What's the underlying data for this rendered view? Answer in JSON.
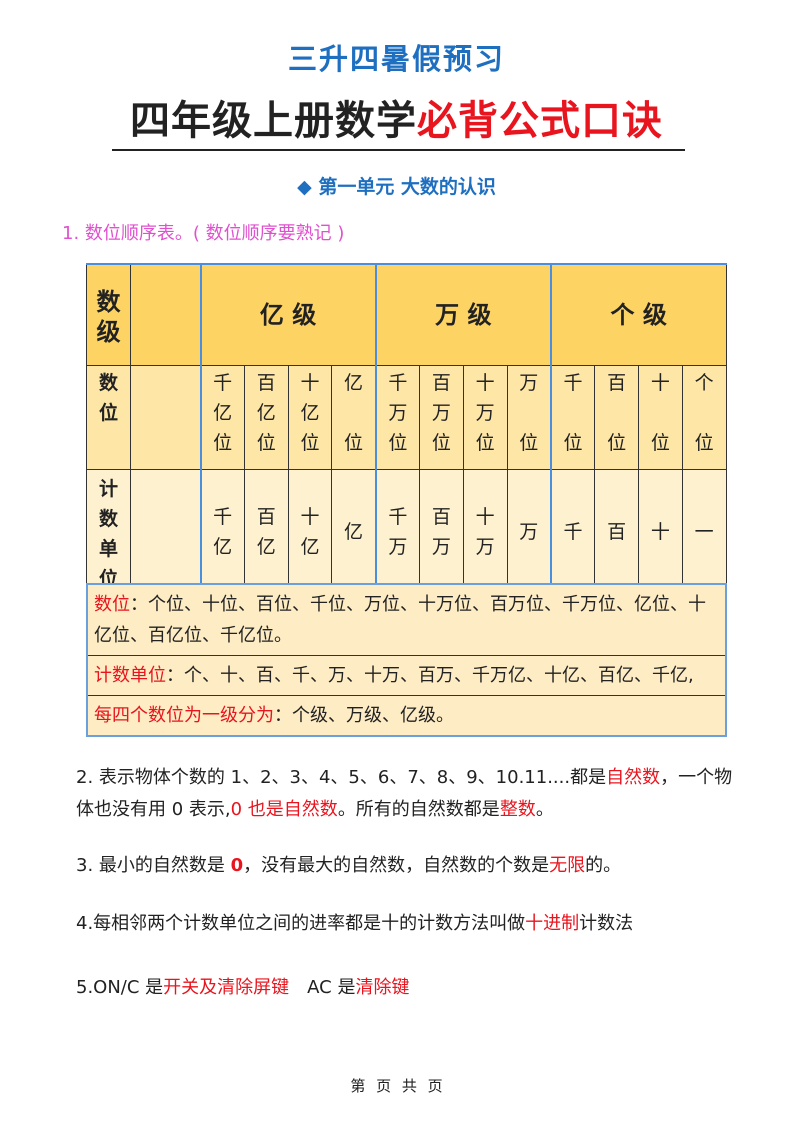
{
  "header": {
    "subtitle": "三升四暑假预习",
    "title_black": "四年级上册数学",
    "title_red": "必背公式口诀"
  },
  "section": {
    "marker": "◆",
    "title": "第一单元 大数的认识"
  },
  "item1": "1. 数位顺序表。( 数位顺序要熟记 )",
  "table": {
    "row_labels": [
      "数级",
      "数位",
      "计数单位"
    ],
    "levels": [
      "亿 级",
      "万 级",
      "个 级"
    ],
    "places": [
      "千亿位",
      "百亿位",
      "十亿位",
      "亿位",
      "千万位",
      "百万位",
      "十万位",
      "万位",
      "千位",
      "百位",
      "十位",
      "个位"
    ],
    "units": [
      "千亿",
      "百亿",
      "十亿",
      "亿",
      "千万",
      "百万",
      "十万",
      "万",
      "千",
      "百",
      "十",
      "一"
    ]
  },
  "notes": [
    {
      "key": "数位",
      "text": "：个位、十位、百位、千位、万位、十万位、百万位、千万位、亿位、十亿位、百亿位、千亿位。"
    },
    {
      "key": "计数单位",
      "text": "：个、十、百、千、万、十万、百万、千万亿、十亿、百亿、千亿,"
    },
    {
      "key": "每四个数位为一级分为",
      "text": "：个级、万级、亿级。"
    }
  ],
  "paragraphs": {
    "p2": [
      "2. 表示物体个数的 1、2、3、4、5、6、7、8、9、10.11....都是",
      "自然数",
      "，一个物体也没有用 0 表示,",
      "0 也是自然数",
      "。所有的自然数都是",
      "整数",
      "。"
    ],
    "p3": [
      "3. 最小的自然数是 ",
      "0",
      "，没有最大的自然数，自然数的个数是",
      "无限",
      "的。"
    ],
    "p4": [
      "4.每相邻两个计数单位之间的进率都是十的计数方法叫做",
      "十进制",
      "计数法"
    ],
    "p5": [
      "5.ON/C 是",
      "开关及清除屏键",
      "　AC 是",
      "清除键"
    ]
  },
  "footer": "第 页 共 页",
  "colors": {
    "blue": "#1f6fc0",
    "red": "#e8141e",
    "pink": "#e050d0",
    "header_fill": "#fdd464"
  }
}
